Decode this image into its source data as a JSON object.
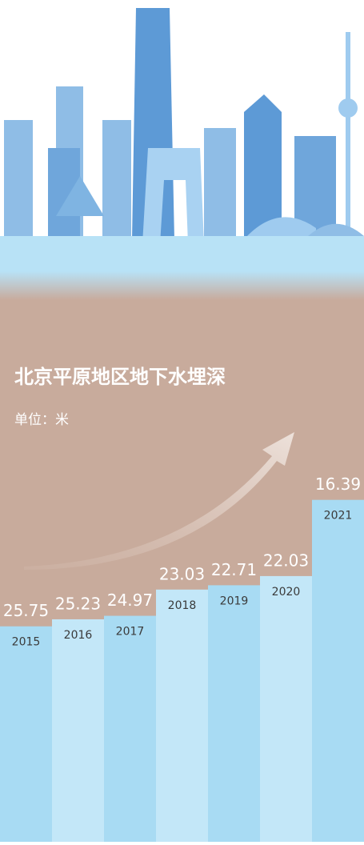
{
  "chart_data": {
    "type": "bar",
    "title": "北京平原地区地下水埋深",
    "subtitle": "单位：米",
    "categories": [
      "2015",
      "2016",
      "2017",
      "2018",
      "2019",
      "2020",
      "2021"
    ],
    "values": [
      25.75,
      25.23,
      24.97,
      23.03,
      22.71,
      22.03,
      16.39
    ],
    "colors": [
      "#a8dbf3",
      "#c3e7f8"
    ],
    "ylim": [
      0,
      41.7
    ],
    "y_inverted": true
  }
}
